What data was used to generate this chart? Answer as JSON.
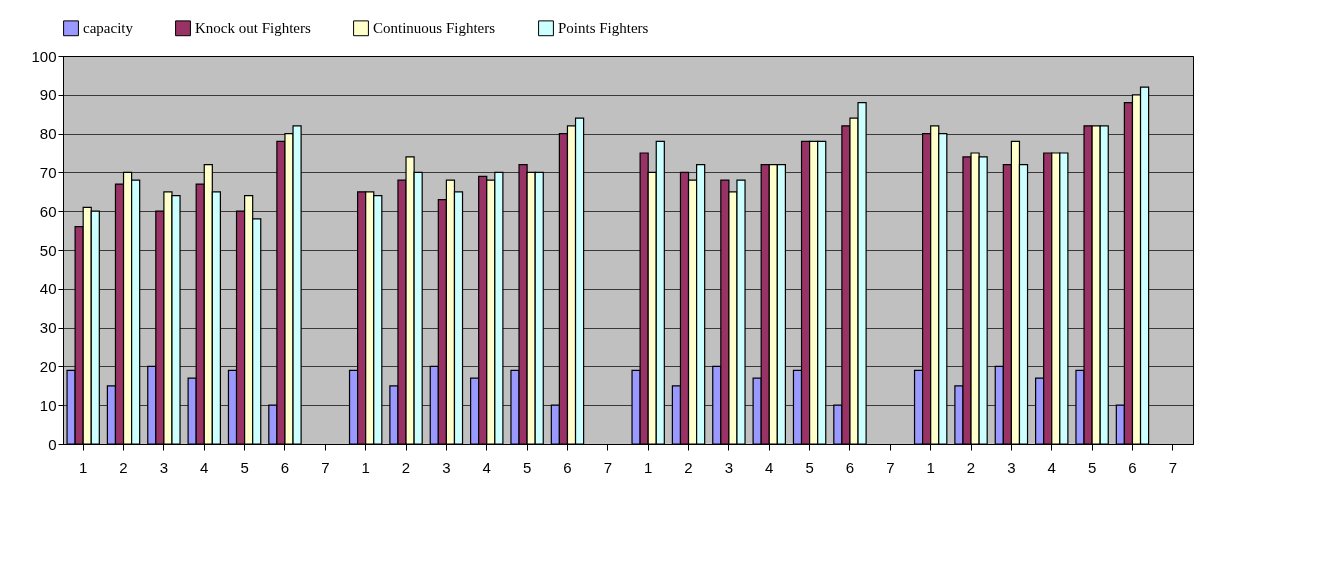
{
  "chart_data": {
    "type": "bar",
    "categories": [
      "1",
      "2",
      "3",
      "4",
      "5",
      "6",
      "7",
      "1",
      "2",
      "3",
      "4",
      "5",
      "6",
      "7",
      "1",
      "2",
      "3",
      "4",
      "5",
      "6",
      "7",
      "1",
      "2",
      "3",
      "4",
      "5",
      "6",
      "7"
    ],
    "series": [
      {
        "name": "capacity",
        "color": "#9999ff",
        "values": [
          19,
          15,
          20,
          17,
          19,
          10,
          null,
          19,
          15,
          20,
          17,
          19,
          10,
          null,
          19,
          15,
          20,
          17,
          19,
          10,
          null,
          19,
          15,
          20,
          17,
          19,
          10,
          null
        ]
      },
      {
        "name": "Knock out Fighters",
        "color": "#993366",
        "values": [
          56,
          67,
          60,
          67,
          60,
          78,
          null,
          65,
          68,
          63,
          69,
          72,
          80,
          null,
          75,
          70,
          68,
          72,
          78,
          82,
          null,
          80,
          74,
          72,
          75,
          82,
          88,
          null
        ]
      },
      {
        "name": "Continuous Fighters",
        "color": "#ffffcc",
        "values": [
          61,
          70,
          65,
          72,
          64,
          80,
          null,
          65,
          74,
          68,
          68,
          70,
          82,
          null,
          70,
          68,
          65,
          72,
          78,
          84,
          null,
          82,
          75,
          78,
          75,
          82,
          90,
          null
        ]
      },
      {
        "name": "Points Fighters",
        "color": "#ccffff",
        "values": [
          60,
          68,
          64,
          65,
          58,
          82,
          null,
          64,
          70,
          65,
          70,
          70,
          84,
          null,
          78,
          72,
          68,
          72,
          78,
          88,
          null,
          80,
          74,
          72,
          75,
          82,
          92,
          null
        ]
      }
    ],
    "ylim": [
      0,
      100
    ],
    "yticks": [
      0,
      10,
      20,
      30,
      40,
      50,
      60,
      70,
      80,
      90,
      100
    ],
    "grid": "y",
    "legend": "top"
  }
}
